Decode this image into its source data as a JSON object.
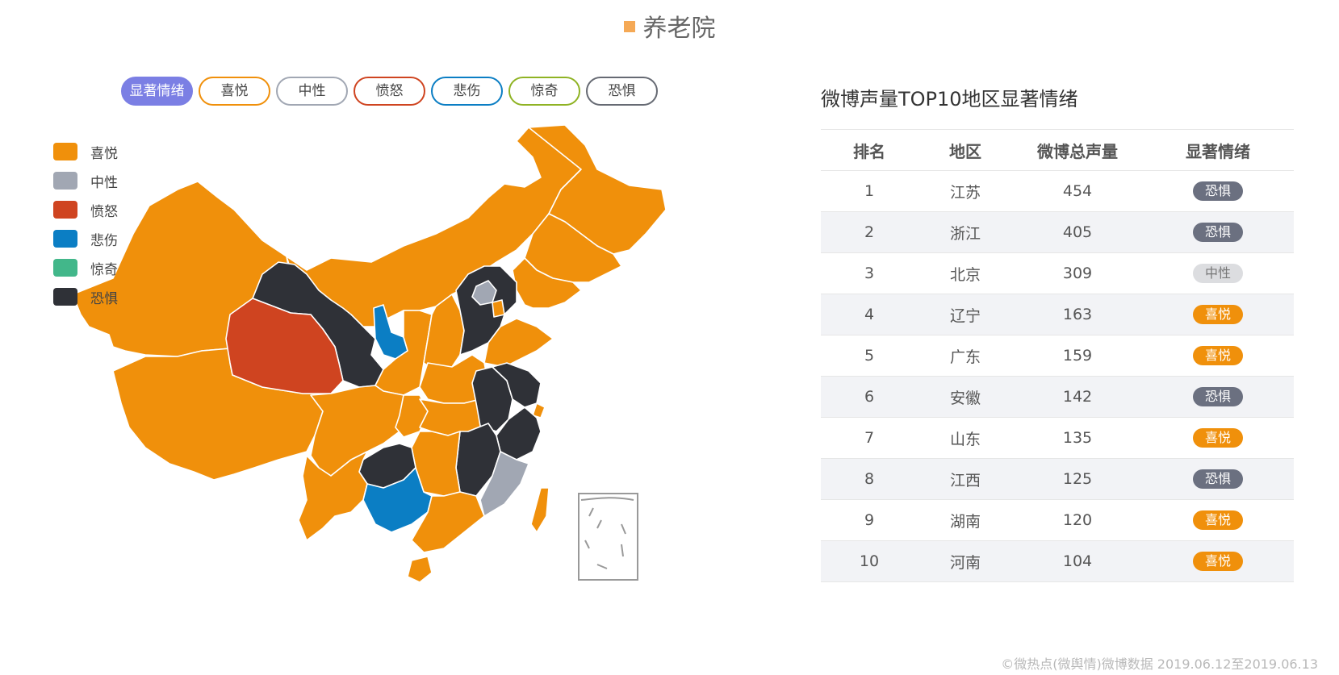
{
  "title": {
    "text": "养老院",
    "marker_color": "#f5a956"
  },
  "filters": [
    {
      "label": "显著情绪",
      "color": "#7b7fe4",
      "active": true
    },
    {
      "label": "喜悦",
      "color": "#f0900b",
      "active": false
    },
    {
      "label": "中性",
      "color": "#a1a7b3",
      "active": false
    },
    {
      "label": "愤怒",
      "color": "#cf4420",
      "active": false
    },
    {
      "label": "悲伤",
      "color": "#0b7ec4",
      "active": false
    },
    {
      "label": "惊奇",
      "color": "#8fb324",
      "active": false
    },
    {
      "label": "恐惧",
      "color": "#666a73",
      "active": false
    }
  ],
  "legend": [
    {
      "label": "喜悦",
      "color": "#f0900b"
    },
    {
      "label": "中性",
      "color": "#a1a7b3"
    },
    {
      "label": "愤怒",
      "color": "#cf4420"
    },
    {
      "label": "悲伤",
      "color": "#0b7ec4"
    },
    {
      "label": "惊奇",
      "color": "#42b78a"
    },
    {
      "label": "恐惧",
      "color": "#2f3137"
    }
  ],
  "map": {
    "emotion_colors": {
      "喜悦": "#f0900b",
      "中性": "#a1a7b3",
      "愤怒": "#cf4420",
      "悲伤": "#0b7ec4",
      "惊奇": "#42b78a",
      "恐惧": "#2f3137"
    },
    "provinces": {
      "新疆": "喜悦",
      "西藏": "喜悦",
      "内蒙古": "喜悦",
      "黑龙江": "喜悦",
      "吉林": "喜悦",
      "辽宁": "喜悦",
      "甘肃": "恐惧",
      "青海": "愤怒",
      "宁夏": "悲伤",
      "陕西": "喜悦",
      "山西": "喜悦",
      "河北": "恐惧",
      "北京": "中性",
      "天津": "喜悦",
      "山东": "喜悦",
      "河南": "喜悦",
      "四川": "喜悦",
      "重庆": "喜悦",
      "湖北": "喜悦",
      "安徽": "恐惧",
      "江苏": "恐惧",
      "上海": "喜悦",
      "浙江": "恐惧",
      "江西": "恐惧",
      "湖南": "喜悦",
      "贵州": "恐惧",
      "云南": "喜悦",
      "广西": "悲伤",
      "广东": "喜悦",
      "福建": "中性",
      "台湾": "喜悦",
      "海南": "喜悦"
    }
  },
  "table": {
    "title": "微博声量TOP10地区显著情绪",
    "headers": [
      "排名",
      "地区",
      "微博总声量",
      "显著情绪"
    ],
    "rows": [
      {
        "rank": "1",
        "region": "江苏",
        "volume": "454",
        "emotion": "恐惧"
      },
      {
        "rank": "2",
        "region": "浙江",
        "volume": "405",
        "emotion": "恐惧"
      },
      {
        "rank": "3",
        "region": "北京",
        "volume": "309",
        "emotion": "中性"
      },
      {
        "rank": "4",
        "region": "辽宁",
        "volume": "163",
        "emotion": "喜悦"
      },
      {
        "rank": "5",
        "region": "广东",
        "volume": "159",
        "emotion": "喜悦"
      },
      {
        "rank": "6",
        "region": "安徽",
        "volume": "142",
        "emotion": "恐惧"
      },
      {
        "rank": "7",
        "region": "山东",
        "volume": "135",
        "emotion": "喜悦"
      },
      {
        "rank": "8",
        "region": "江西",
        "volume": "125",
        "emotion": "恐惧"
      },
      {
        "rank": "9",
        "region": "湖南",
        "volume": "120",
        "emotion": "喜悦"
      },
      {
        "rank": "10",
        "region": "河南",
        "volume": "104",
        "emotion": "喜悦"
      }
    ],
    "badge_colors": {
      "恐惧": "#6b7080",
      "中性": "#dcdde0",
      "喜悦": "#f0900b"
    },
    "badge_text_colors": {
      "恐惧": "#ffffff",
      "中性": "#777777",
      "喜悦": "#ffffff"
    }
  },
  "footer": "©微热点(微舆情)微博数据 2019.06.12至2019.06.13"
}
